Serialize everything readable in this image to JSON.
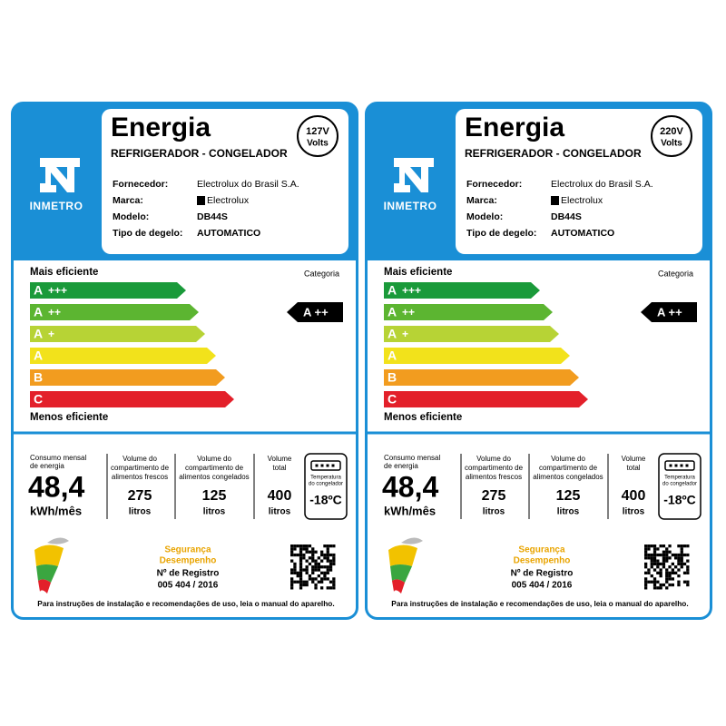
{
  "labels": [
    {
      "inmetro": "INMETRO",
      "title": "Energia",
      "subtitle": "REFRIGERADOR - CONGELADOR",
      "voltage": "127V",
      "voltage_unit": "Volts",
      "fields": [
        {
          "label": "Fornecedor:",
          "value": "Electrolux do Brasil S.A."
        },
        {
          "label": "Marca:",
          "value": "Electrolux"
        },
        {
          "label": "Modelo:",
          "value": "DB44S"
        },
        {
          "label": "Tipo de degelo:",
          "value": "AUTOMATICO"
        }
      ],
      "efficiency": {
        "top": "Mais eficiente",
        "bottom": "Menos eficiente",
        "category_label": "Categoria",
        "classes": [
          {
            "letter": "A",
            "plus": "+++"
          },
          {
            "letter": "A",
            "plus": "++"
          },
          {
            "letter": "A",
            "plus": "+"
          },
          {
            "letter": "A"
          },
          {
            "letter": "B"
          },
          {
            "letter": "C"
          }
        ],
        "rating": "A ++"
      },
      "consumption": {
        "label": [
          "Consumo mensal",
          "de energia"
        ],
        "value": "48,4",
        "unit": "kWh/mês"
      },
      "volumes": [
        {
          "label": [
            "Volume do",
            "compartimento de",
            "alimentos frescos"
          ],
          "value": "275",
          "unit": "litros"
        },
        {
          "label": [
            "Volume do",
            "compartimento de",
            "alimentos congelados"
          ],
          "value": "125",
          "unit": "litros"
        },
        {
          "label": [
            "Volume",
            "total"
          ],
          "value": "400",
          "unit": "litros"
        }
      ],
      "freezer": {
        "label": [
          "Temperatura",
          "do congelador"
        ],
        "value": "-18ºC"
      },
      "seal": [
        "Segurança",
        "Desempenho"
      ],
      "registry_label": "Nº de Registro",
      "registry": "005 404 / 2016",
      "footer": "Para instruções de instalação e recomendações de uso, leia o manual do aparelho."
    },
    {
      "inmetro": "INMETRO",
      "title": "Energia",
      "subtitle": "REFRIGERADOR - CONGELADOR",
      "voltage": "220V",
      "voltage_unit": "Volts",
      "fields": [
        {
          "label": "Fornecedor:",
          "value": "Electrolux do Brasil S.A."
        },
        {
          "label": "Marca:",
          "value": "Electrolux"
        },
        {
          "label": "Modelo:",
          "value": "DB44S"
        },
        {
          "label": "Tipo de degelo:",
          "value": "AUTOMATICO"
        }
      ],
      "efficiency": {
        "top": "Mais eficiente",
        "bottom": "Menos eficiente",
        "category_label": "Categoria",
        "classes": [
          {
            "letter": "A",
            "plus": "+++"
          },
          {
            "letter": "A",
            "plus": "++"
          },
          {
            "letter": "A",
            "plus": "+"
          },
          {
            "letter": "A"
          },
          {
            "letter": "B"
          },
          {
            "letter": "C"
          }
        ],
        "rating": "A ++"
      },
      "consumption": {
        "label": [
          "Consumo mensal",
          "de energia"
        ],
        "value": "48,4",
        "unit": "kWh/mês"
      },
      "volumes": [
        {
          "label": [
            "Volume do",
            "compartimento de",
            "alimentos frescos"
          ],
          "value": "275",
          "unit": "litros"
        },
        {
          "label": [
            "Volume do",
            "compartimento de",
            "alimentos congelados"
          ],
          "value": "125",
          "unit": "litros"
        },
        {
          "label": [
            "Volume",
            "total"
          ],
          "value": "400",
          "unit": "litros"
        }
      ],
      "freezer": {
        "label": [
          "Temperatura",
          "do congelador"
        ],
        "value": "-18ºC"
      },
      "seal": [
        "Segurança",
        "Desempenho"
      ],
      "registry_label": "Nº de Registro",
      "registry": "005 404 / 2016",
      "footer": "Para instruções de instalação e recomendações de uso, leia o manual do aparelho."
    }
  ]
}
